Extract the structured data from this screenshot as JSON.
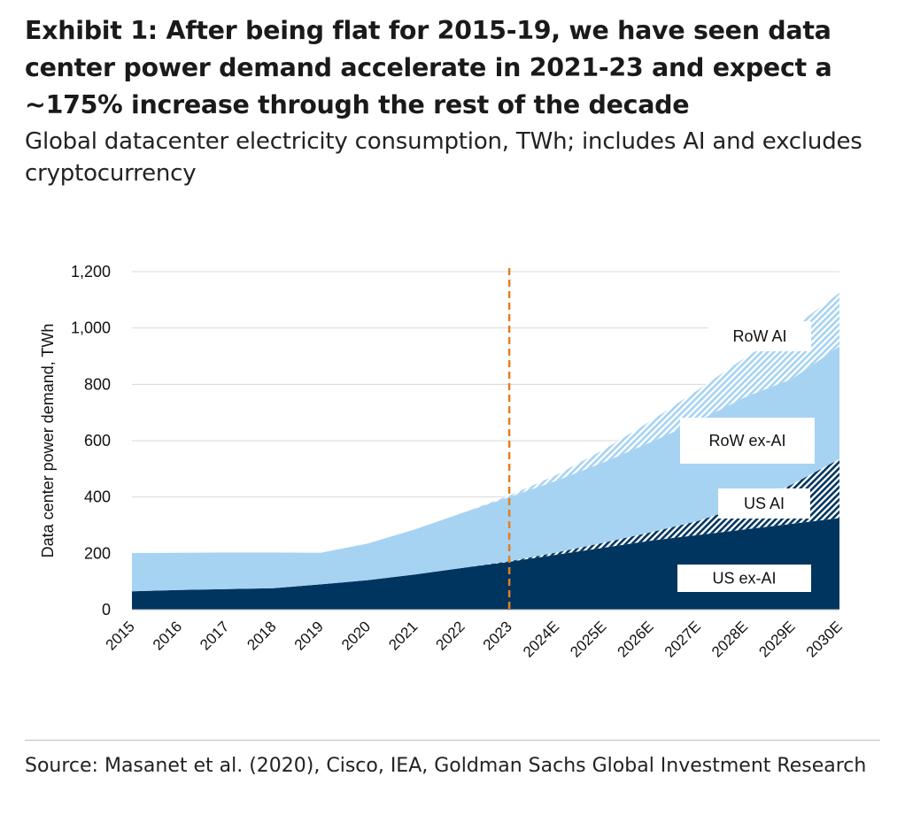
{
  "title": "Exhibit 1: After being flat for 2015-19, we have seen data center power demand accelerate in 2021-23 and expect a ~175% increase through the rest of the decade",
  "subtitle": "Global datacenter electricity consumption, TWh; includes AI and excludes cryptocurrency",
  "source": "Source: Masanet et al. (2020), Cisco, IEA, Goldman Sachs Global Investment Research",
  "colors": {
    "us_ex_ai": "#00355f",
    "row_ex_ai": "#a6d3f2",
    "vline": "#e87d1e"
  },
  "chart_data": {
    "type": "area",
    "stacked": true,
    "categories": [
      "2015",
      "2016",
      "2017",
      "2018",
      "2019",
      "2020",
      "2021",
      "2022",
      "2023",
      "2024E",
      "2025E",
      "2026E",
      "2027E",
      "2028E",
      "2029E",
      "2030E"
    ],
    "series": [
      {
        "name": "US ex-AI",
        "label": "US ex-AI",
        "values": [
          65,
          70,
          73,
          76,
          90,
          105,
          125,
          148,
          170,
          195,
          220,
          245,
          265,
          285,
          305,
          325
        ]
      },
      {
        "name": "US AI",
        "label": "US AI",
        "values": [
          0,
          0,
          0,
          0,
          0,
          0,
          0,
          0,
          2,
          8,
          18,
          30,
          50,
          85,
          140,
          210
        ]
      },
      {
        "name": "RoW ex-AI",
        "label": "RoW ex-AI",
        "values": [
          135,
          132,
          130,
          127,
          112,
          130,
          160,
          195,
          228,
          255,
          285,
          320,
          355,
          385,
          375,
          400
        ]
      },
      {
        "name": "RoW AI",
        "label": "RoW AI",
        "values": [
          0,
          0,
          0,
          0,
          0,
          0,
          0,
          0,
          5,
          20,
          45,
          75,
          110,
          140,
          180,
          190
        ]
      }
    ],
    "ylabel": "Data center power demand, TWh",
    "xlabel": "",
    "ylim": [
      0,
      1200
    ],
    "yticks": [
      0,
      200,
      400,
      600,
      800,
      1000,
      1200
    ],
    "ytick_labels": [
      "0",
      "200",
      "400",
      "600",
      "800",
      "1,000",
      "1,200"
    ],
    "grid": true,
    "vertical_marker": {
      "at": "2023",
      "style": "dashed"
    }
  }
}
